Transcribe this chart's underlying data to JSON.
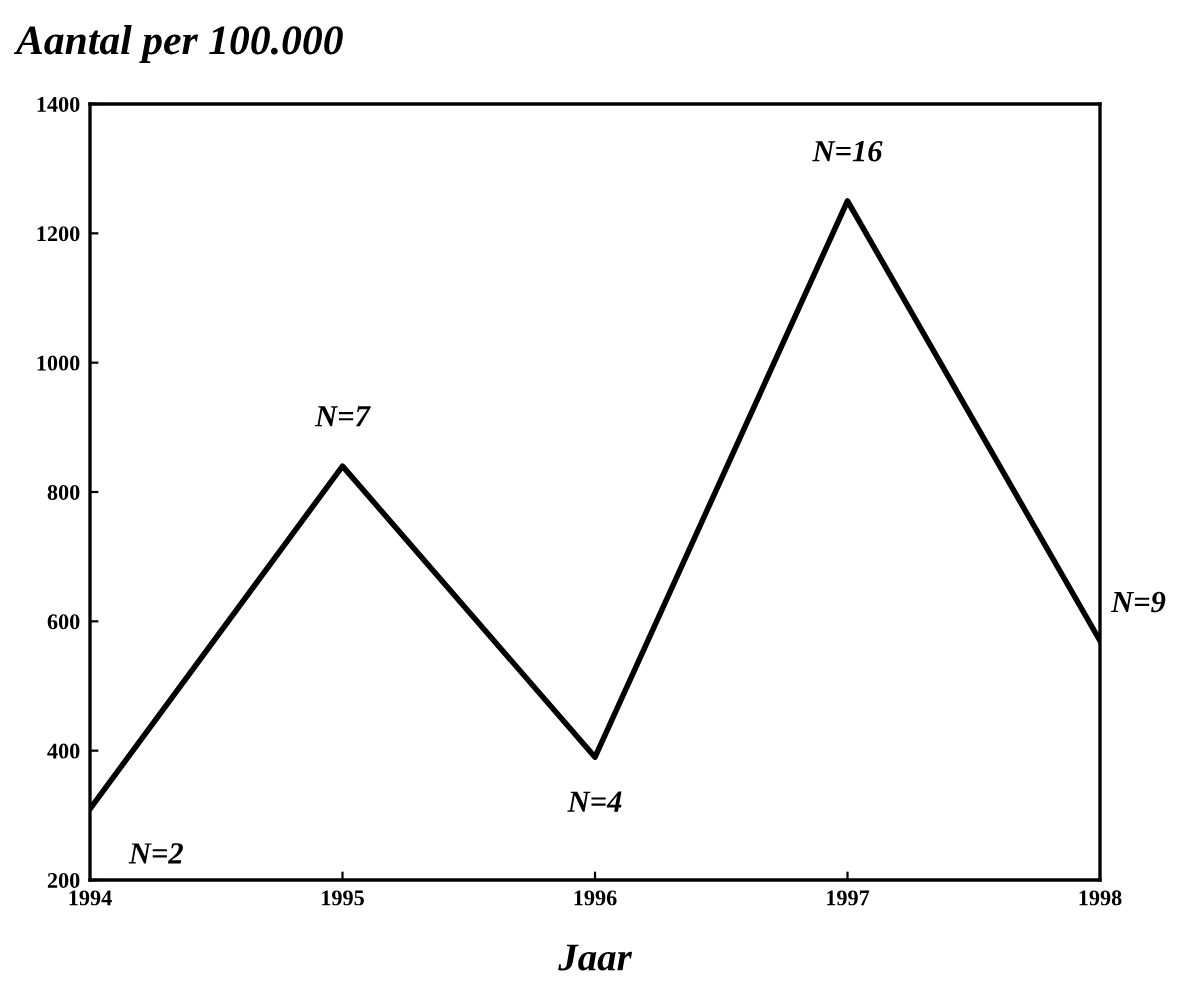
{
  "chart_data": {
    "type": "line",
    "title": "Aantal per 100.000",
    "xlabel": "Jaar",
    "x": [
      1994,
      1995,
      1996,
      1997,
      1998
    ],
    "series": [
      {
        "color": "#000000",
        "values": [
          310,
          840,
          390,
          1250,
          570
        ]
      }
    ],
    "xlim": [
      1994,
      1998
    ],
    "xticks": [
      1994,
      1995,
      1996,
      1997,
      1998
    ],
    "ylim": [
      200,
      1400
    ],
    "yticks": [
      200,
      400,
      600,
      800,
      1000,
      1200,
      1400
    ],
    "grid": false,
    "legend": false,
    "marker": "none",
    "line_style": "solid",
    "annotations": [
      {
        "text": "N=2",
        "x": 1994,
        "y": 310
      },
      {
        "text": "N=7",
        "x": 1995,
        "y": 840
      },
      {
        "text": "N=4",
        "x": 1996,
        "y": 390
      },
      {
        "text": "N=16",
        "x": 1997,
        "y": 1250
      },
      {
        "text": "N=9",
        "x": 1998,
        "y": 570
      }
    ]
  }
}
